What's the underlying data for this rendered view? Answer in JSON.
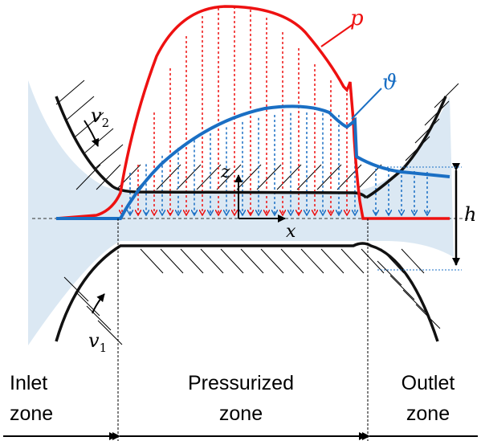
{
  "labels": {
    "pressure": "p",
    "temperature": "ϑ",
    "roller_top_velocity": "v",
    "roller_top_velocity_sub": "2",
    "roller_bottom_velocity": "v",
    "roller_bottom_velocity_sub": "1",
    "gap_height": "h",
    "axis_z": "z",
    "axis_x": "x"
  },
  "zones": {
    "inlet": {
      "line1": "Inlet",
      "line2": "zone"
    },
    "pressurized": {
      "line1": "Pressurized",
      "line2": "zone"
    },
    "outlet": {
      "line1": "Outlet",
      "line2": "zone"
    }
  },
  "colors": {
    "pressure": "#ee1111",
    "temperature": "#1a6fc4",
    "fluid": "#dbe8f3",
    "structure": "#111111"
  }
}
